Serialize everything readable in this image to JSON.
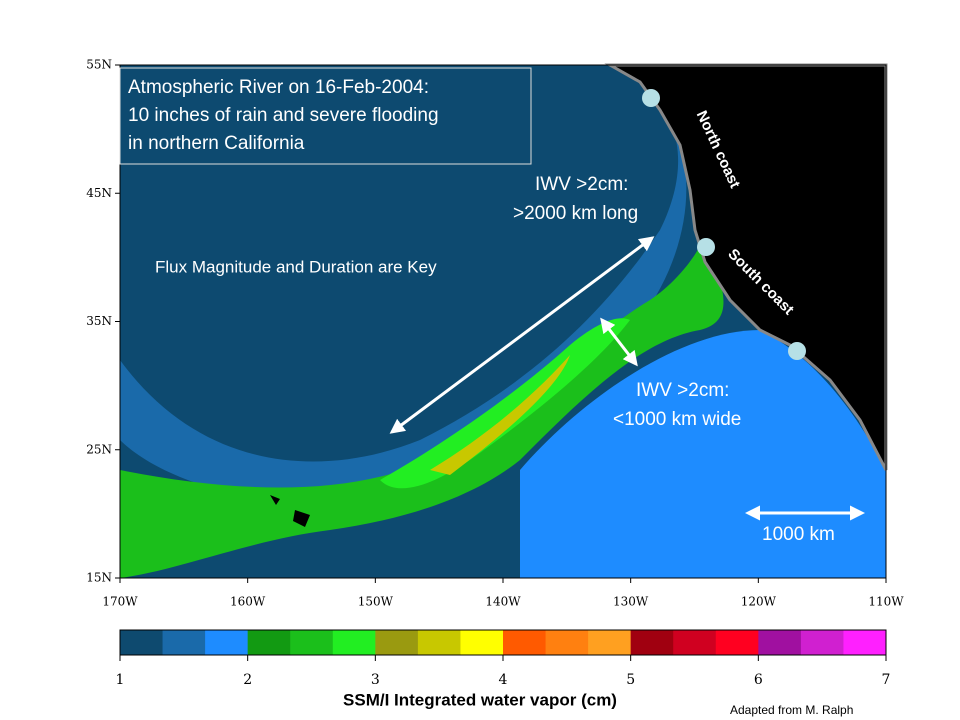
{
  "annotations": {
    "title_lines": [
      "Atmospheric River on 16-Feb-2004:",
      "10 inches of rain and severe flooding",
      "in northern California"
    ],
    "flux": "Flux Magnitude and Duration are Key",
    "long": [
      "IWV >2cm:",
      ">2000 km long"
    ],
    "wide": [
      "IWV >2cm:",
      "<1000 km wide"
    ],
    "north": "North coast",
    "south": "South coast",
    "scale": "1000 km"
  },
  "axes": {
    "lat": {
      "lim": [
        15,
        55
      ],
      "ticks": [
        {
          "value": 55,
          "label": "55N"
        },
        {
          "value": 45,
          "label": "45N"
        },
        {
          "value": 35,
          "label": "35N"
        },
        {
          "value": 25,
          "label": "25N"
        },
        {
          "value": 15,
          "label": "15N"
        }
      ]
    },
    "lon": {
      "lim": [
        -170,
        -110
      ],
      "ticks": [
        {
          "value": -170,
          "label": "170W"
        },
        {
          "value": -160,
          "label": "160W"
        },
        {
          "value": -150,
          "label": "150W"
        },
        {
          "value": -140,
          "label": "140W"
        },
        {
          "value": -130,
          "label": "130W"
        },
        {
          "value": -120,
          "label": "120W"
        },
        {
          "value": -110,
          "label": "110W"
        }
      ]
    }
  },
  "colorbar": {
    "lim": [
      1,
      7
    ],
    "ticks": [
      1,
      2,
      3,
      4,
      5,
      6,
      7
    ],
    "colors": [
      "#0e4a6f",
      "#1a6aaa",
      "#1e8cff",
      "#129a12",
      "#1bbf1b",
      "#22ee22",
      "#9a9a10",
      "#c8c800",
      "#ffff00",
      "#ff5a00",
      "#ff8010",
      "#ffa020",
      "#a00010",
      "#d00020",
      "#ff0020",
      "#a010a0",
      "#d020d0",
      "#ff20ff"
    ],
    "label": "SSM/I Integrated water vapor (cm)"
  },
  "credit": "Adapted from M. Ralph"
}
